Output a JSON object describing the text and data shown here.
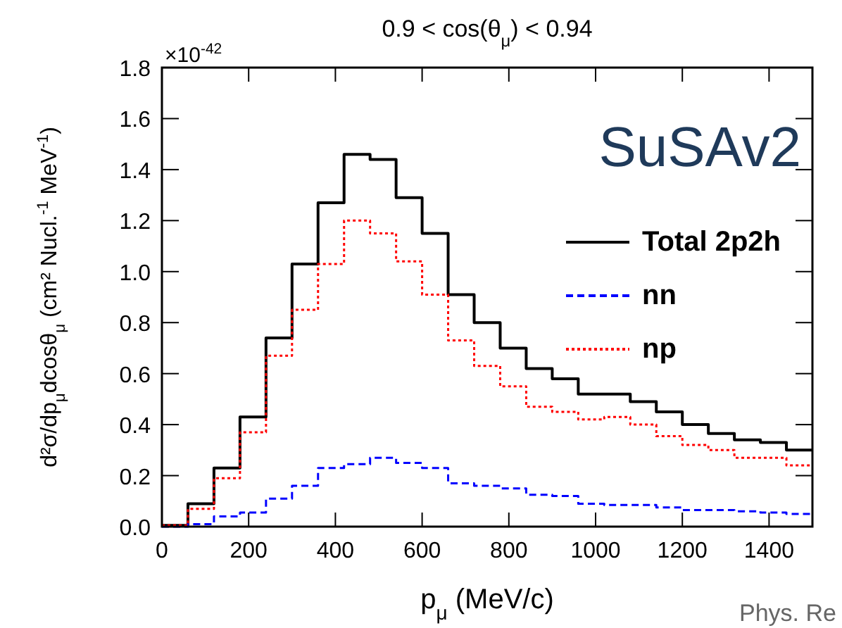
{
  "chart_data": {
    "type": "histogram",
    "title": "0.9 < cos(θ$_{μ}$) < 0.94",
    "xlabel": "p$_{μ}$ (MeV/c)",
    "ylabel": "d²σ/dp$_{μ}$dcosθ$_{μ}$ (cm² Nucl.$^{-1}$ MeV$^{-1}$)",
    "bins": [
      0,
      60,
      120,
      180,
      240,
      300,
      360,
      420,
      480,
      540,
      600,
      660,
      720,
      780,
      840,
      900,
      960,
      1020,
      1080,
      1140,
      1200,
      1260,
      1320,
      1380,
      1440,
      1500
    ],
    "series": [
      {
        "name": "Total 2p2h",
        "color": "#000000",
        "line_style": "solid",
        "values": [
          0.005,
          0.09,
          0.23,
          0.43,
          0.74,
          1.03,
          1.27,
          1.46,
          1.44,
          1.29,
          1.15,
          0.91,
          0.8,
          0.7,
          0.62,
          0.58,
          0.52,
          0.52,
          0.49,
          0.45,
          0.4,
          0.365,
          0.34,
          0.33,
          0.3
        ]
      },
      {
        "name": "nn",
        "color": "#0000ff",
        "line_style": "dashed",
        "values": [
          0.0,
          0.01,
          0.04,
          0.055,
          0.11,
          0.16,
          0.23,
          0.245,
          0.27,
          0.25,
          0.23,
          0.17,
          0.16,
          0.15,
          0.125,
          0.12,
          0.09,
          0.085,
          0.085,
          0.075,
          0.065,
          0.065,
          0.06,
          0.055,
          0.05
        ]
      },
      {
        "name": "np",
        "color": "#ff0000",
        "line_style": "dotted",
        "values": [
          0.005,
          0.07,
          0.19,
          0.37,
          0.67,
          0.85,
          1.03,
          1.2,
          1.15,
          1.04,
          0.91,
          0.73,
          0.63,
          0.55,
          0.47,
          0.45,
          0.42,
          0.43,
          0.4,
          0.355,
          0.32,
          0.3,
          0.27,
          0.27,
          0.24
        ]
      }
    ],
    "xlim": [
      0,
      1500
    ],
    "xticks": [
      0,
      200,
      400,
      600,
      800,
      1000,
      1200,
      1400
    ],
    "ylim": [
      0,
      1.8
    ],
    "yticks": [
      {
        "value": 0,
        "label": "0.0"
      },
      0.2,
      0.4,
      0.6,
      0.8,
      {
        "value": 1,
        "label": "1.0"
      },
      1.2,
      1.4,
      1.6,
      1.8
    ],
    "legend": "right",
    "annotations": [
      "×10$^{-42}$",
      "SuSAv2",
      "Phys. Re"
    ]
  }
}
